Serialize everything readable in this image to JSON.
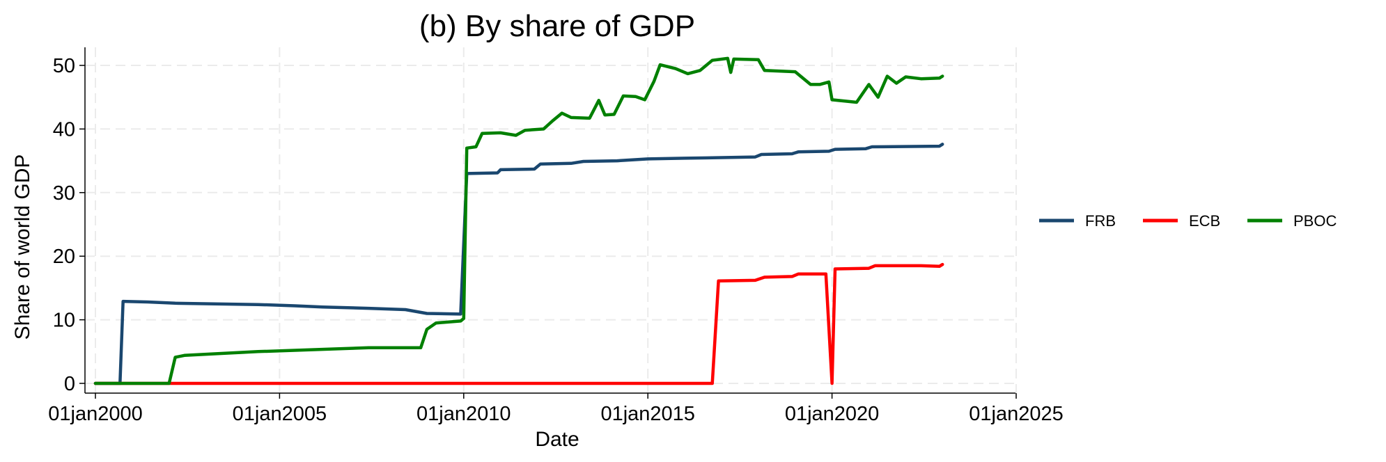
{
  "chart_data": {
    "type": "line",
    "title": "(b) By share of GDP",
    "xlabel": "Date",
    "ylabel": "Share of world GDP",
    "x_ticks": [
      "01jan2000",
      "01jan2005",
      "01jan2010",
      "01jan2015",
      "01jan2020",
      "01jan2025"
    ],
    "y_ticks": [
      0,
      10,
      20,
      30,
      40,
      50
    ],
    "xlim": [
      "2000-01",
      "2025-01"
    ],
    "ylim": [
      0,
      52
    ],
    "grid": true,
    "legend_position": "right",
    "series": [
      {
        "name": "FRB",
        "color": "#1a476f",
        "points": [
          [
            "2000-01",
            0
          ],
          [
            "2000-09",
            0
          ],
          [
            "2000-10",
            12.9
          ],
          [
            "2001-06",
            12.8
          ],
          [
            "2002-03",
            12.6
          ],
          [
            "2004-06",
            12.4
          ],
          [
            "2005-06",
            12.2
          ],
          [
            "2006-03",
            12.0
          ],
          [
            "2007-06",
            11.8
          ],
          [
            "2008-06",
            11.6
          ],
          [
            "2009-01",
            11.0
          ],
          [
            "2009-12",
            10.9
          ],
          [
            "2010-02",
            33.0
          ],
          [
            "2010-12",
            33.1
          ],
          [
            "2011-01",
            33.6
          ],
          [
            "2011-12",
            33.7
          ],
          [
            "2012-02",
            34.5
          ],
          [
            "2012-12",
            34.6
          ],
          [
            "2013-04",
            34.9
          ],
          [
            "2014-03",
            35.0
          ],
          [
            "2015-01",
            35.3
          ],
          [
            "2016-01",
            35.4
          ],
          [
            "2017-01",
            35.5
          ],
          [
            "2017-12",
            35.6
          ],
          [
            "2018-02",
            36.0
          ],
          [
            "2018-12",
            36.1
          ],
          [
            "2019-02",
            36.4
          ],
          [
            "2019-12",
            36.5
          ],
          [
            "2020-02",
            36.8
          ],
          [
            "2020-12",
            36.9
          ],
          [
            "2021-02",
            37.2
          ],
          [
            "2022-12",
            37.3
          ],
          [
            "2023-01",
            37.6
          ]
        ]
      },
      {
        "name": "ECB",
        "color": "#ff0000",
        "points": [
          [
            "2000-01",
            0
          ],
          [
            "2016-10",
            0
          ],
          [
            "2016-12",
            16.1
          ],
          [
            "2017-12",
            16.2
          ],
          [
            "2018-03",
            16.7
          ],
          [
            "2018-12",
            16.8
          ],
          [
            "2019-02",
            17.2
          ],
          [
            "2019-11",
            17.2
          ],
          [
            "2020-01",
            0
          ],
          [
            "2020-02",
            18.0
          ],
          [
            "2021-01",
            18.1
          ],
          [
            "2021-03",
            18.5
          ],
          [
            "2022-06",
            18.5
          ],
          [
            "2022-12",
            18.4
          ],
          [
            "2023-01",
            18.7
          ]
        ]
      },
      {
        "name": "PBOC",
        "color": "#008000",
        "points": [
          [
            "2000-01",
            0
          ],
          [
            "2002-01",
            0
          ],
          [
            "2002-03",
            4.1
          ],
          [
            "2002-06",
            4.4
          ],
          [
            "2003-06",
            4.7
          ],
          [
            "2004-06",
            5.0
          ],
          [
            "2005-06",
            5.2
          ],
          [
            "2006-06",
            5.4
          ],
          [
            "2007-06",
            5.6
          ],
          [
            "2008-11",
            5.6
          ],
          [
            "2009-01",
            8.5
          ],
          [
            "2009-04",
            9.5
          ],
          [
            "2009-12",
            9.8
          ],
          [
            "2010-01",
            10.2
          ],
          [
            "2010-02",
            37.0
          ],
          [
            "2010-05",
            37.2
          ],
          [
            "2010-07",
            39.3
          ],
          [
            "2011-01",
            39.4
          ],
          [
            "2011-06",
            39.0
          ],
          [
            "2011-09",
            39.8
          ],
          [
            "2012-03",
            40.0
          ],
          [
            "2012-06",
            41.3
          ],
          [
            "2012-09",
            42.5
          ],
          [
            "2012-12",
            41.8
          ],
          [
            "2013-06",
            41.7
          ],
          [
            "2013-09",
            44.5
          ],
          [
            "2013-11",
            42.2
          ],
          [
            "2014-02",
            42.3
          ],
          [
            "2014-05",
            45.2
          ],
          [
            "2014-09",
            45.1
          ],
          [
            "2014-12",
            44.6
          ],
          [
            "2015-03",
            47.5
          ],
          [
            "2015-05",
            50.1
          ],
          [
            "2015-10",
            49.5
          ],
          [
            "2016-02",
            48.7
          ],
          [
            "2016-06",
            49.2
          ],
          [
            "2016-10",
            50.8
          ],
          [
            "2017-03",
            51.1
          ],
          [
            "2017-04",
            48.9
          ],
          [
            "2017-05",
            51.0
          ],
          [
            "2018-01",
            50.9
          ],
          [
            "2018-03",
            49.2
          ],
          [
            "2019-01",
            49.0
          ],
          [
            "2019-06",
            47.0
          ],
          [
            "2019-09",
            47.0
          ],
          [
            "2019-12",
            47.4
          ],
          [
            "2020-01",
            44.6
          ],
          [
            "2020-09",
            44.2
          ],
          [
            "2021-01",
            47.0
          ],
          [
            "2021-04",
            45.0
          ],
          [
            "2021-07",
            48.3
          ],
          [
            "2021-10",
            47.2
          ],
          [
            "2022-01",
            48.2
          ],
          [
            "2022-06",
            47.9
          ],
          [
            "2022-12",
            48.0
          ],
          [
            "2023-01",
            48.3
          ]
        ]
      }
    ]
  }
}
